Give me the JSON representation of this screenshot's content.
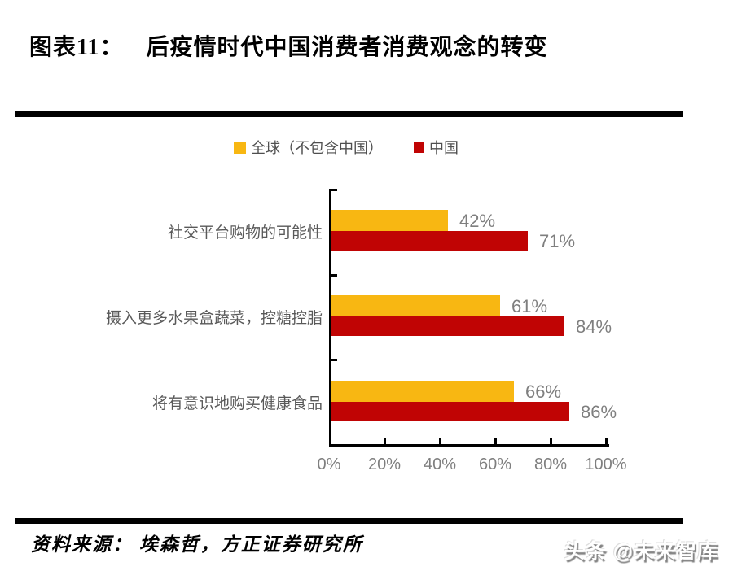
{
  "header": {
    "label": "图表11：",
    "title": "后疫情时代中国消费者消费观念的转变"
  },
  "chart_data": {
    "type": "bar",
    "orientation": "horizontal",
    "title": "后疫情时代中国消费者消费观念的转变",
    "categories": [
      "社交平台购物的可能性",
      "摄入更多水果盒蔬菜，控糖控脂",
      "将有意识地购买健康食品"
    ],
    "series": [
      {
        "name": "全球（不包含中国）",
        "color": "#F8B712",
        "values": [
          42,
          61,
          66
        ]
      },
      {
        "name": "中国",
        "color": "#C00404",
        "values": [
          71,
          84,
          86
        ]
      }
    ],
    "value_label_suffix": "%",
    "x_ticks": [
      "0%",
      "20%",
      "40%",
      "60%",
      "80%",
      "100%"
    ],
    "xlim": [
      0,
      100
    ],
    "grid": false,
    "legend_position": "top"
  },
  "footer": {
    "source": "资料来源： 埃森哲，方正证券研究所",
    "watermark": "头条 @未来智库"
  }
}
